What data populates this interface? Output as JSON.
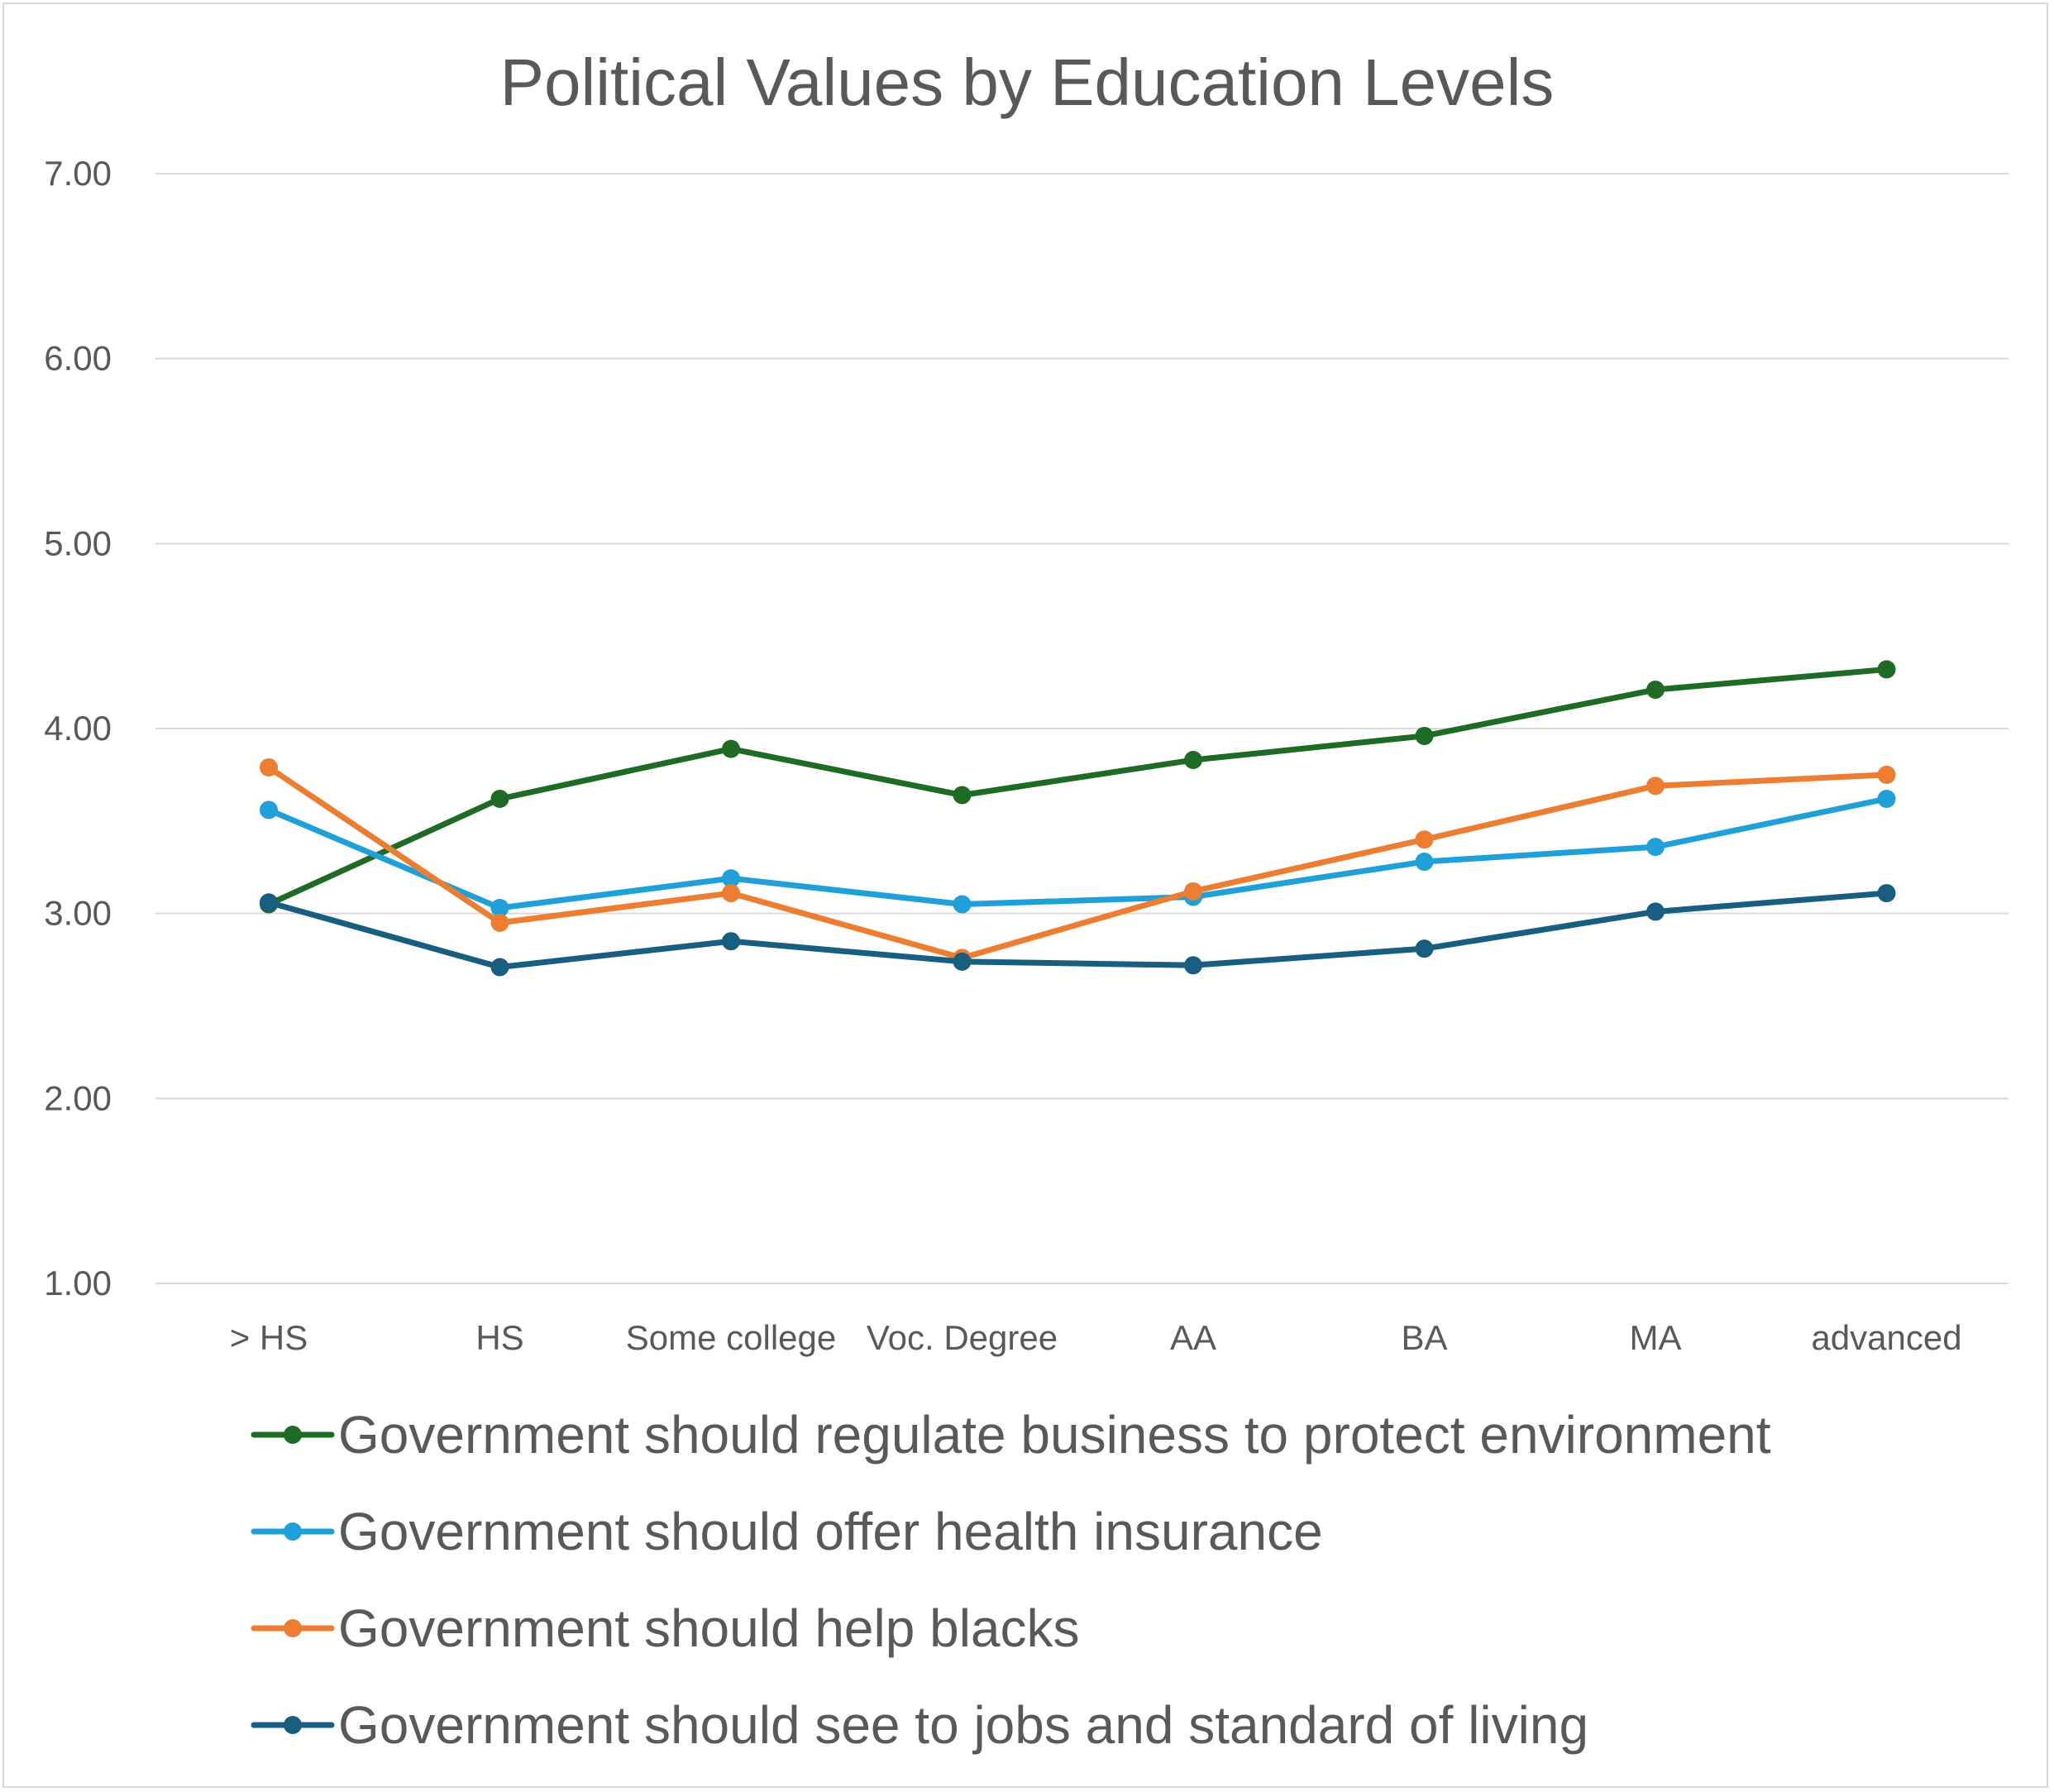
{
  "chart_data": {
    "type": "line",
    "title": "Political Values by Education Levels",
    "xlabel": "",
    "ylabel": "",
    "categories": [
      ">  HS",
      "HS",
      "Some college",
      "Voc. Degree",
      "AA",
      "BA",
      "MA",
      "advanced"
    ],
    "ylim": [
      1.0,
      7.0
    ],
    "yticks": [
      "7.00",
      "6.00",
      "5.00",
      "4.00",
      "3.00",
      "2.00",
      "1.00"
    ],
    "ytick_values": [
      7,
      6,
      5,
      4,
      3,
      2,
      1
    ],
    "grid": true,
    "legend_position": "bottom",
    "series": [
      {
        "name": "Government should regulate business to protect environment",
        "color": "#1E6B25",
        "values": [
          3.05,
          3.62,
          3.89,
          3.64,
          3.83,
          3.96,
          4.21,
          4.32
        ]
      },
      {
        "name": "Government should offer health insurance",
        "color": "#1FA0D8",
        "values": [
          3.56,
          3.03,
          3.19,
          3.05,
          3.09,
          3.28,
          3.36,
          3.62
        ]
      },
      {
        "name": "Government should help blacks",
        "color": "#ED7D31",
        "values": [
          3.79,
          2.95,
          3.11,
          2.76,
          3.12,
          3.4,
          3.69,
          3.75
        ]
      },
      {
        "name": "Government should see to jobs and standard of living",
        "color": "#185E80",
        "values": [
          3.06,
          2.71,
          2.85,
          2.74,
          2.72,
          2.81,
          3.01,
          3.11
        ]
      }
    ]
  }
}
